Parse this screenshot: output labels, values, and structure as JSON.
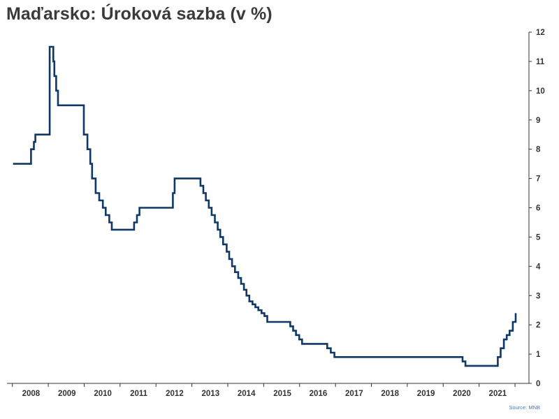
{
  "title": "Maďarsko: Úroková sazba (v %)",
  "source": "Source: MNB",
  "colors": {
    "line": "#0f3866",
    "axis": "#333333",
    "title": "#3a3a3a",
    "source": "#4a7ab0"
  },
  "chart_data": {
    "type": "line",
    "title": "Maďarsko: Úroková sazba (v %)",
    "xlabel": "",
    "ylabel": "",
    "ylim": [
      0,
      12
    ],
    "xlim": [
      2007.33,
      2021.83
    ],
    "y_ticks": [
      0,
      1,
      2,
      3,
      4,
      5,
      6,
      7,
      8,
      9,
      10,
      11,
      12
    ],
    "x_tick_labels": [
      "2008",
      "2009",
      "2010",
      "2011",
      "2012",
      "2013",
      "2014",
      "2015",
      "2016",
      "2017",
      "2018",
      "2019",
      "2020",
      "2021"
    ],
    "y_axis_position": "right",
    "grid": false,
    "step": true,
    "series": [
      {
        "values": [
          [
            2007.5,
            7.5
          ],
          [
            2008.0,
            8.0
          ],
          [
            2008.08,
            8.25
          ],
          [
            2008.12,
            8.5
          ],
          [
            2008.52,
            11.5
          ],
          [
            2008.62,
            11.0
          ],
          [
            2008.65,
            10.5
          ],
          [
            2008.7,
            10.0
          ],
          [
            2008.75,
            9.5
          ],
          [
            2009.47,
            8.5
          ],
          [
            2009.57,
            8.0
          ],
          [
            2009.65,
            7.5
          ],
          [
            2009.7,
            7.0
          ],
          [
            2009.8,
            6.5
          ],
          [
            2009.9,
            6.25
          ],
          [
            2010.0,
            6.0
          ],
          [
            2010.08,
            5.75
          ],
          [
            2010.18,
            5.5
          ],
          [
            2010.25,
            5.25
          ],
          [
            2010.87,
            5.5
          ],
          [
            2010.95,
            5.75
          ],
          [
            2011.02,
            6.0
          ],
          [
            2011.95,
            6.5
          ],
          [
            2012.0,
            7.0
          ],
          [
            2012.72,
            6.75
          ],
          [
            2012.8,
            6.5
          ],
          [
            2012.87,
            6.25
          ],
          [
            2012.95,
            6.0
          ],
          [
            2013.03,
            5.75
          ],
          [
            2013.12,
            5.5
          ],
          [
            2013.2,
            5.25
          ],
          [
            2013.27,
            5.0
          ],
          [
            2013.35,
            4.75
          ],
          [
            2013.45,
            4.5
          ],
          [
            2013.52,
            4.25
          ],
          [
            2013.6,
            4.0
          ],
          [
            2013.68,
            3.8
          ],
          [
            2013.77,
            3.6
          ],
          [
            2013.85,
            3.4
          ],
          [
            2013.93,
            3.2
          ],
          [
            2014.0,
            3.0
          ],
          [
            2014.08,
            2.8
          ],
          [
            2014.17,
            2.7
          ],
          [
            2014.25,
            2.6
          ],
          [
            2014.33,
            2.5
          ],
          [
            2014.42,
            2.4
          ],
          [
            2014.5,
            2.3
          ],
          [
            2014.58,
            2.1
          ],
          [
            2015.22,
            1.95
          ],
          [
            2015.3,
            1.8
          ],
          [
            2015.38,
            1.65
          ],
          [
            2015.47,
            1.5
          ],
          [
            2015.55,
            1.35
          ],
          [
            2016.25,
            1.2
          ],
          [
            2016.35,
            1.05
          ],
          [
            2016.45,
            0.9
          ],
          [
            2019.85,
            0.9
          ],
          [
            2020.02,
            0.75
          ],
          [
            2020.1,
            0.6
          ],
          [
            2020.92,
            0.6
          ],
          [
            2021.0,
            0.9
          ],
          [
            2021.08,
            1.2
          ],
          [
            2021.17,
            1.5
          ],
          [
            2021.25,
            1.65
          ],
          [
            2021.33,
            1.8
          ],
          [
            2021.42,
            2.1
          ],
          [
            2021.5,
            2.4
          ],
          [
            2021.5,
            2.4
          ]
        ]
      }
    ]
  }
}
